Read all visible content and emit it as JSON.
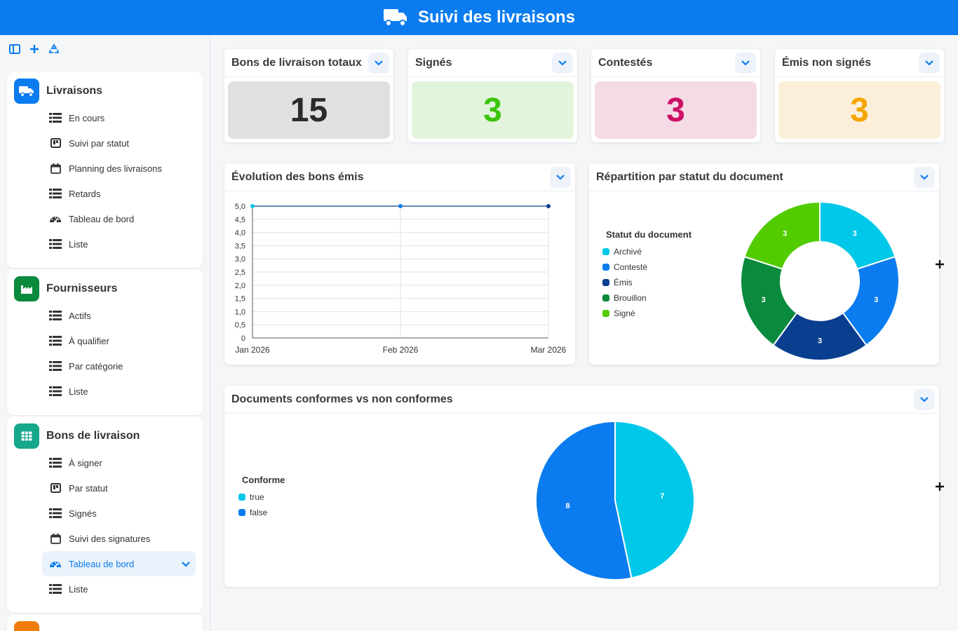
{
  "header": {
    "title": "Suivi des livraisons",
    "icon": "truck-icon"
  },
  "colors": {
    "brand": "#0a7cf0",
    "cyan": "#00c8e8",
    "blue": "#0a7cf0",
    "navy": "#0a3f8f",
    "green": "#0a8a3c",
    "lime": "#52cc00"
  },
  "sidebar": {
    "groups": [
      {
        "title": "Livraisons",
        "icon": "truck-icon",
        "color": "#0a7cf0",
        "items": [
          {
            "label": "En cours",
            "icon": "list-icon"
          },
          {
            "label": "Suivi par statut",
            "icon": "kanban-icon"
          },
          {
            "label": "Planning des livraisons",
            "icon": "calendar-icon"
          },
          {
            "label": "Retards",
            "icon": "list-icon"
          },
          {
            "label": "Tableau de bord",
            "icon": "gauge-icon"
          },
          {
            "label": "Liste",
            "icon": "list-icon"
          }
        ]
      },
      {
        "title": "Fournisseurs",
        "icon": "factory-icon",
        "color": "#0a8a3c",
        "items": [
          {
            "label": "Actifs",
            "icon": "list-icon"
          },
          {
            "label": "À qualifier",
            "icon": "list-icon"
          },
          {
            "label": "Par catégorie",
            "icon": "list-icon"
          },
          {
            "label": "Liste",
            "icon": "list-icon"
          }
        ]
      },
      {
        "title": "Bons de livraison",
        "icon": "grid-icon",
        "color": "#16a88a",
        "items": [
          {
            "label": "À signer",
            "icon": "list-icon"
          },
          {
            "label": "Par statut",
            "icon": "kanban-icon"
          },
          {
            "label": "Signés",
            "icon": "list-icon"
          },
          {
            "label": "Suivi des signatures",
            "icon": "calendar-icon"
          },
          {
            "label": "Tableau de bord",
            "icon": "gauge-icon",
            "active": true
          },
          {
            "label": "Liste",
            "icon": "list-icon"
          }
        ]
      }
    ]
  },
  "kpis": [
    {
      "title": "Bons de livraison totaux",
      "value": "15",
      "bg": "#e0e0e0",
      "fg": "#2b2b2b"
    },
    {
      "title": "Signés",
      "value": "3",
      "bg": "#e2f5dc",
      "fg": "#3cc40c"
    },
    {
      "title": "Contestés",
      "value": "3",
      "bg": "#f5dbe6",
      "fg": "#cc1166"
    },
    {
      "title": "Émis non signés",
      "value": "3",
      "bg": "#fbefda",
      "fg": "#f5a500"
    }
  ],
  "line_card": {
    "title": "Évolution des bons émis"
  },
  "donut_card": {
    "title": "Répartition par statut du document"
  },
  "pie_card": {
    "title": "Documents conformes vs non conformes"
  },
  "chart_data": [
    {
      "type": "line",
      "title": "Évolution des bons émis",
      "x": [
        "Jan 2026",
        "Feb 2026",
        "Mar 2026"
      ],
      "series": [
        {
          "values": [
            5,
            5,
            5
          ]
        }
      ],
      "ylim": [
        0,
        5
      ],
      "yticks": [
        "0",
        "0,5",
        "1,0",
        "1,5",
        "2,0",
        "2,5",
        "3,0",
        "3,5",
        "4,0",
        "4,5",
        "5,0"
      ],
      "grid": true
    },
    {
      "type": "pie",
      "variant": "donut",
      "title": "Répartition par statut du document",
      "legend_title": "Statut du document",
      "legend_position": "left",
      "categories": [
        "Archivé",
        "Contesté",
        "Émis",
        "Brouillon",
        "Signé"
      ],
      "values": [
        3,
        3,
        3,
        3,
        3
      ],
      "colors": [
        "#00c8e8",
        "#0a7cf0",
        "#0a3f8f",
        "#0a8a3c",
        "#52cc00"
      ]
    },
    {
      "type": "pie",
      "title": "Documents conformes vs non conformes",
      "legend_title": "Conforme",
      "legend_position": "left",
      "categories": [
        "true",
        "false"
      ],
      "values": [
        7,
        8
      ],
      "colors": [
        "#00c8e8",
        "#0a7cf0"
      ]
    }
  ]
}
